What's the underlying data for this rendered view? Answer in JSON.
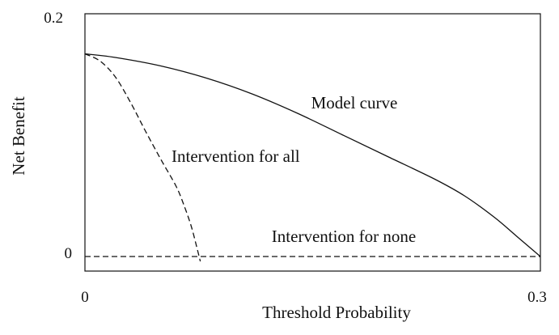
{
  "chart_data": {
    "type": "line",
    "title": "",
    "xlabel": "Threshold Probability",
    "ylabel": "Net Benefit",
    "xlim": [
      0,
      0.3
    ],
    "ylim": [
      -0.012,
      0.2
    ],
    "x_ticks": [
      "0",
      "0.3"
    ],
    "y_ticks": [
      "0",
      "0.2"
    ],
    "grid": false,
    "legend": "none",
    "series": [
      {
        "name": "Model curve",
        "style": "solid",
        "color": "#111111",
        "x": [
          0,
          0.02,
          0.05,
          0.08,
          0.11,
          0.14,
          0.17,
          0.2,
          0.23,
          0.25,
          0.27,
          0.285,
          0.3
        ],
        "y": [
          0.167,
          0.164,
          0.157,
          0.147,
          0.134,
          0.118,
          0.1,
          0.082,
          0.064,
          0.05,
          0.032,
          0.016,
          0.0
        ]
      },
      {
        "name": "Intervention for all",
        "style": "dashed",
        "color": "#111111",
        "x": [
          0,
          0.01,
          0.02,
          0.03,
          0.04,
          0.05,
          0.06,
          0.065,
          0.07,
          0.074,
          0.076
        ],
        "y": [
          0.167,
          0.161,
          0.148,
          0.127,
          0.103,
          0.08,
          0.058,
          0.043,
          0.025,
          0.006,
          -0.004
        ]
      },
      {
        "name": "Intervention for none",
        "style": "dashed",
        "color": "#111111",
        "x": [
          0,
          0.3
        ],
        "y": [
          0,
          0
        ]
      }
    ],
    "annotations": [
      {
        "text": "Model curve",
        "x": 0.149,
        "y": 0.122
      },
      {
        "text": "Intervention for all",
        "x": 0.057,
        "y": 0.078
      },
      {
        "text": "Intervention for none",
        "x": 0.123,
        "y": 0.012
      }
    ]
  }
}
